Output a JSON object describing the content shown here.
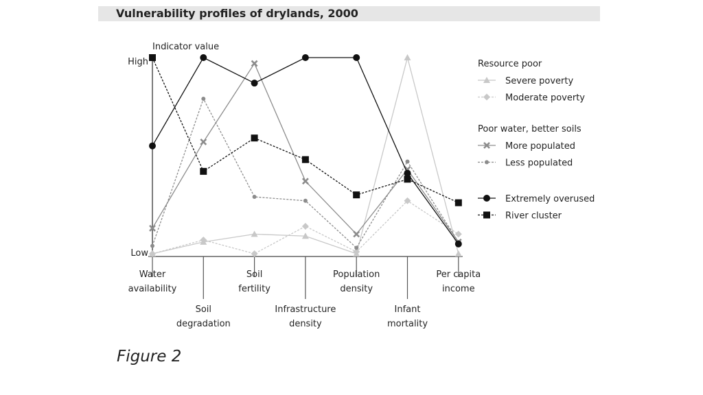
{
  "chart_data": {
    "type": "line",
    "title": "Vulnerability profiles of drylands, 2000",
    "ylabel": "Indicator value",
    "y_tick_labels": [
      "Low",
      "High"
    ],
    "ylim": [
      0,
      1
    ],
    "grid": false,
    "legend_position": "right",
    "categories": [
      "Water availability",
      "Soil degradation",
      "Soil fertility",
      "Infrastructure density",
      "Population density",
      "Infant mortality",
      "Per capita income"
    ],
    "category_lines": [
      [
        "Water",
        "availability"
      ],
      [
        "Soil",
        "degradation"
      ],
      [
        "Soil",
        "fertility"
      ],
      [
        "Infrastructure",
        "density"
      ],
      [
        "Population",
        "density"
      ],
      [
        "Infant",
        "mortality"
      ],
      [
        "Per capita",
        "income"
      ]
    ],
    "legend_groups": [
      {
        "title": "Resource poor",
        "series": [
          0,
          1
        ]
      },
      {
        "title": "Poor water, better soils",
        "series": [
          2,
          3
        ]
      },
      {
        "title": "",
        "series": [
          4,
          5
        ]
      }
    ],
    "series": [
      {
        "name": "Severe poverty",
        "color": "#c8c8c8",
        "dashed": false,
        "marker": "triangle",
        "values": [
          0.0,
          0.06,
          0.1,
          0.09,
          0.0,
          1.0,
          0.0
        ]
      },
      {
        "name": "Moderate poverty",
        "color": "#c8c8c8",
        "dashed": true,
        "marker": "diamond",
        "values": [
          0.0,
          0.07,
          0.0,
          0.14,
          0.01,
          0.27,
          0.1
        ]
      },
      {
        "name": "More populated",
        "color": "#8c8c8c",
        "dashed": false,
        "marker": "x",
        "values": [
          0.13,
          0.57,
          0.97,
          0.37,
          0.1,
          0.43,
          0.06
        ]
      },
      {
        "name": "Less populated",
        "color": "#8c8c8c",
        "dashed": true,
        "marker": "smalldot",
        "values": [
          0.04,
          0.79,
          0.29,
          0.27,
          0.03,
          0.47,
          0.06
        ]
      },
      {
        "name": "Extremely overused",
        "color": "#111111",
        "dashed": false,
        "marker": "circle",
        "values": [
          0.55,
          1.0,
          0.87,
          1.0,
          1.0,
          0.41,
          0.05
        ]
      },
      {
        "name": "River cluster",
        "color": "#111111",
        "dashed": true,
        "marker": "square",
        "values": [
          1.0,
          0.42,
          0.59,
          0.48,
          0.3,
          0.38,
          0.26
        ]
      }
    ]
  },
  "figure_caption": "Figure 2"
}
